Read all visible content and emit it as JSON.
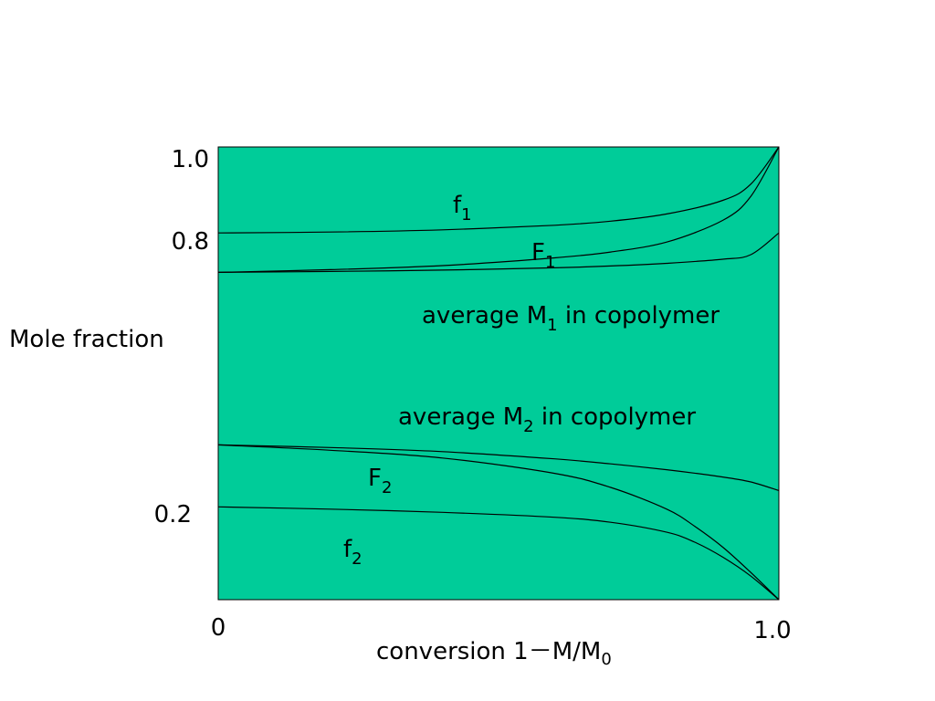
{
  "chart_data": {
    "type": "line",
    "xlabel": "conversion  1－M/M0",
    "xlabel_parts": {
      "main": "conversion  1",
      "dash": "－",
      "after": "M/M",
      "sub": "0"
    },
    "ylabel": "Mole fraction",
    "xlim": [
      0,
      1.0
    ],
    "ylim": [
      0,
      1.0
    ],
    "x_ticks": [
      {
        "value": 0,
        "label": "0"
      },
      {
        "value": 1.0,
        "label": "1.0"
      }
    ],
    "y_ticks": [
      {
        "value": 1.0,
        "label": "1.0"
      },
      {
        "value": 0.8,
        "label": "0.8"
      },
      {
        "value": 0.2,
        "label": "0.2"
      }
    ],
    "grid": false,
    "background_color": "#00cc99",
    "line_color": "#000000",
    "series": [
      {
        "name": "f1",
        "x": [
          0,
          0.2,
          0.4,
          0.6,
          0.7,
          0.8,
          0.9,
          0.95,
          1.0
        ],
        "y": [
          0.81,
          0.812,
          0.817,
          0.827,
          0.836,
          0.852,
          0.882,
          0.918,
          1.0
        ]
      },
      {
        "name": "F1",
        "x": [
          0,
          0.2,
          0.4,
          0.6,
          0.7,
          0.8,
          0.9,
          0.95,
          1.0
        ],
        "y": [
          0.723,
          0.729,
          0.738,
          0.755,
          0.768,
          0.79,
          0.838,
          0.891,
          1.0
        ]
      },
      {
        "name": "average M1 in copolymer",
        "x": [
          0,
          0.2,
          0.4,
          0.6,
          0.7,
          0.8,
          0.9,
          0.95,
          1.0
        ],
        "y": [
          0.723,
          0.725,
          0.728,
          0.733,
          0.737,
          0.743,
          0.752,
          0.762,
          0.81
        ]
      },
      {
        "name": "average M2 in copolymer",
        "x": [
          0,
          0.2,
          0.4,
          0.6,
          0.7,
          0.8,
          0.9,
          0.95,
          1.0
        ],
        "y": [
          0.342,
          0.336,
          0.327,
          0.311,
          0.3,
          0.287,
          0.271,
          0.26,
          0.241
        ]
      },
      {
        "name": "F2",
        "x": [
          0,
          0.2,
          0.4,
          0.6,
          0.7,
          0.8,
          0.85,
          0.9,
          0.95,
          1.0
        ],
        "y": [
          0.342,
          0.33,
          0.313,
          0.279,
          0.248,
          0.2,
          0.162,
          0.116,
          0.06,
          0.0
        ]
      },
      {
        "name": "f2",
        "x": [
          0,
          0.2,
          0.4,
          0.6,
          0.7,
          0.8,
          0.85,
          0.9,
          0.95,
          1.0
        ],
        "y": [
          0.205,
          0.2,
          0.193,
          0.182,
          0.171,
          0.149,
          0.127,
          0.094,
          0.052,
          0.0
        ]
      }
    ],
    "annotations": [
      {
        "id": "f1",
        "main": "f",
        "sub": "1"
      },
      {
        "id": "F1",
        "main": "F",
        "sub": "1"
      },
      {
        "id": "avgM1",
        "main": "average M",
        "sub": "1",
        "after": " in copolymer"
      },
      {
        "id": "avgM2",
        "main": "average M",
        "sub": "2",
        "after": " in copolymer"
      },
      {
        "id": "F2",
        "main": "F",
        "sub": "2"
      },
      {
        "id": "f2",
        "main": "f",
        "sub": "2"
      }
    ]
  }
}
